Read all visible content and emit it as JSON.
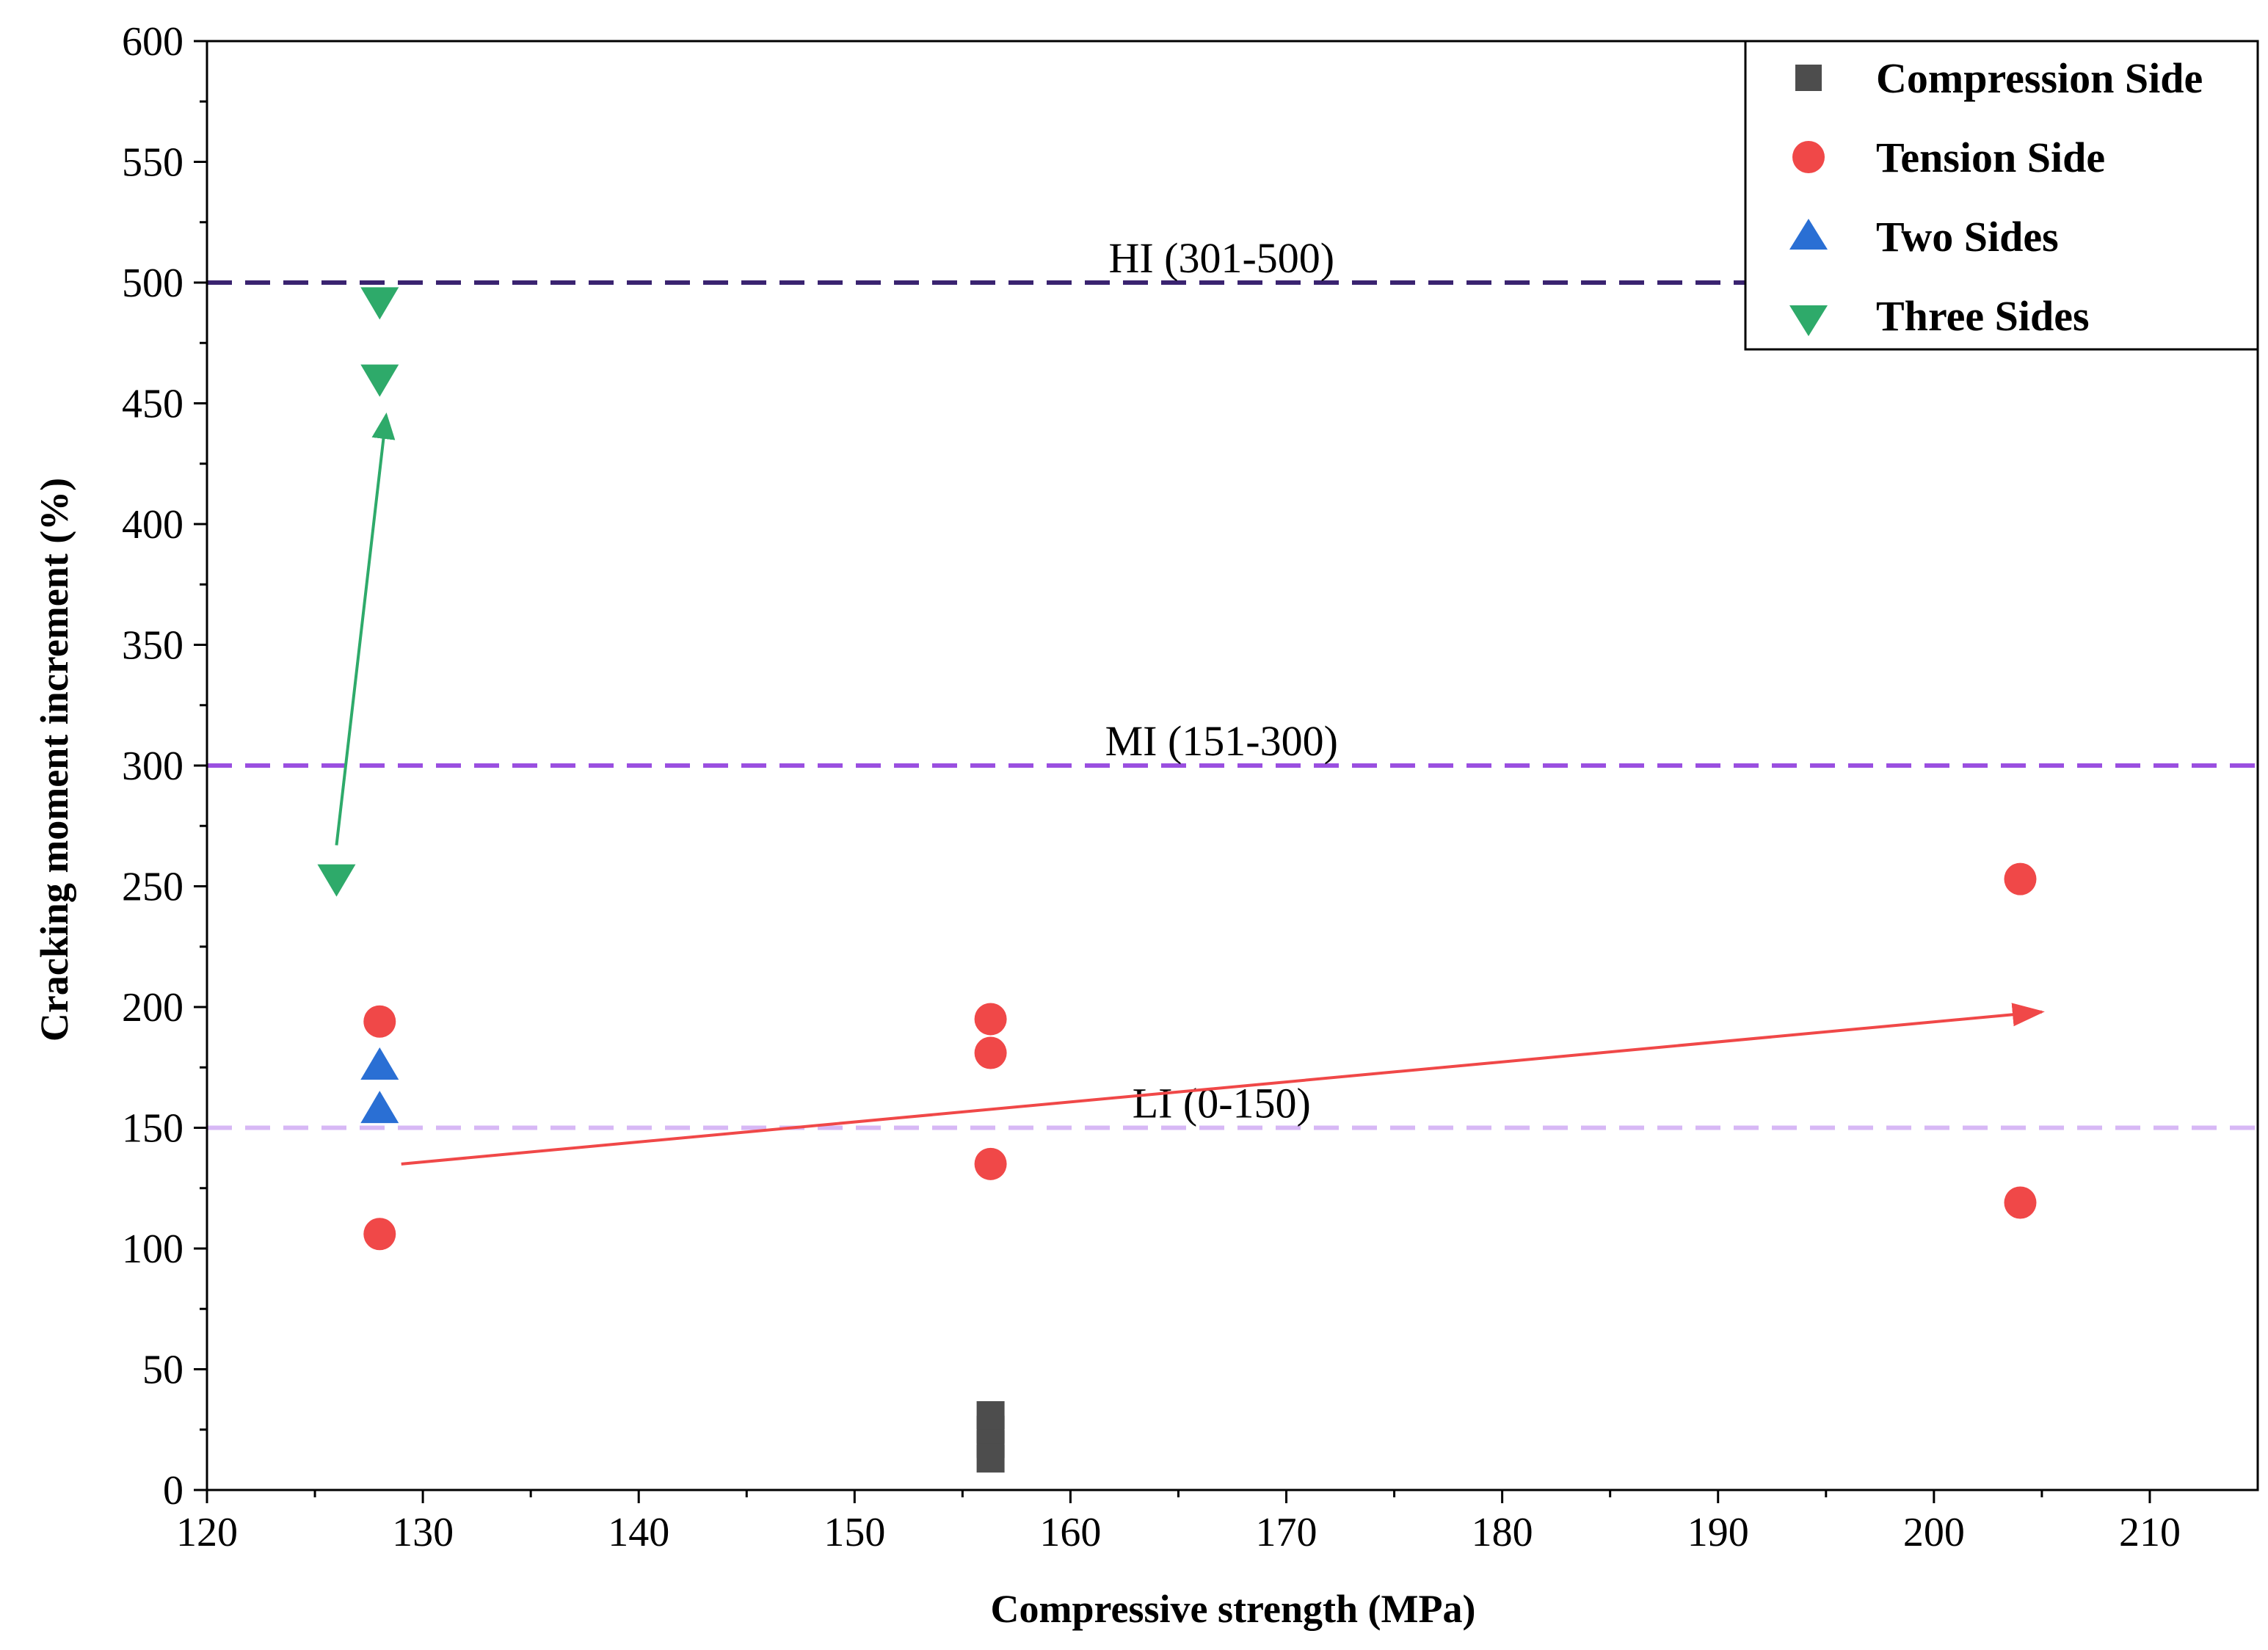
{
  "chart_data": {
    "type": "scatter",
    "title": "",
    "xlabel": "Compressive strength (MPa)",
    "ylabel": "Cracking moment increment (%)",
    "xlim": [
      120,
      215
    ],
    "ylim": [
      0,
      600
    ],
    "xticks": [
      120,
      130,
      140,
      150,
      160,
      170,
      180,
      190,
      200,
      210
    ],
    "yticks": [
      0,
      50,
      100,
      150,
      200,
      250,
      300,
      350,
      400,
      450,
      500,
      550,
      600
    ],
    "grid": false,
    "legend_position": "top-right",
    "series": [
      {
        "name": "Compression Side",
        "marker": "square",
        "color": "#4d4d4d",
        "points": [
          [
            156.3,
            13
          ],
          [
            156.3,
            19
          ],
          [
            156.3,
            25
          ],
          [
            156.3,
            31
          ]
        ]
      },
      {
        "name": "Tension Side",
        "marker": "circle",
        "color": "#f04848",
        "points": [
          [
            128,
            194
          ],
          [
            128,
            106
          ],
          [
            156.3,
            195
          ],
          [
            156.3,
            181
          ],
          [
            156.3,
            135
          ],
          [
            204,
            253
          ],
          [
            204,
            119
          ]
        ]
      },
      {
        "name": "Two Sides",
        "marker": "triangle-up",
        "color": "#2a6fd4",
        "points": [
          [
            128,
            176
          ],
          [
            128,
            158
          ]
        ]
      },
      {
        "name": "Three Sides",
        "marker": "triangle-down",
        "color": "#2eaa6a",
        "points": [
          [
            128,
            492
          ],
          [
            128,
            460
          ],
          [
            126,
            253
          ]
        ]
      }
    ],
    "reference_lines": [
      {
        "label": "HI (301-500)",
        "y": 500,
        "color": "#3a2370",
        "label_x": 167
      },
      {
        "label": "MI (151-300)",
        "y": 300,
        "color": "#9a4fe0",
        "label_x": 167
      },
      {
        "label": "LI (0-150)",
        "y": 150,
        "color": "#d7b8f5",
        "label_x": 167
      }
    ],
    "arrows": [
      {
        "from": [
          126,
          267
        ],
        "to": [
          128.3,
          445
        ],
        "color": "#2eaa6a"
      },
      {
        "from": [
          129,
          135
        ],
        "to": [
          205,
          198
        ],
        "color": "#f04848"
      }
    ]
  }
}
